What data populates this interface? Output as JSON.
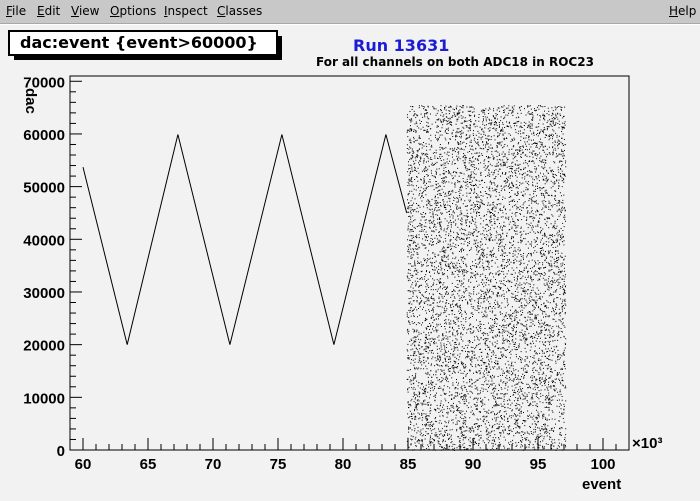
{
  "menubar": {
    "items": [
      {
        "label": "File",
        "u": "F",
        "rest": "ile"
      },
      {
        "label": "Edit",
        "u": "E",
        "rest": "dit"
      },
      {
        "label": "View",
        "u": "V",
        "rest": "iew"
      },
      {
        "label": "Options",
        "u": "O",
        "rest": "ptions"
      },
      {
        "label": "Inspect",
        "u": "I",
        "rest": "nspect"
      },
      {
        "label": "Classes",
        "u": "C",
        "rest": "lasses"
      }
    ],
    "help": {
      "label": "Help",
      "u": "H",
      "rest": "elp"
    }
  },
  "plot": {
    "title_box": "dac:event {event>60000}",
    "run_label": "Run 13631",
    "subtitle": "For all channels on both ADC18 in ROC23"
  },
  "chart_data": {
    "type": "scatter",
    "title": "dac:event {event>60000}",
    "xlabel": "event",
    "ylabel": "dac",
    "x_multiplier_label": "×10³",
    "xlim": [
      59,
      102
    ],
    "ylim": [
      0,
      71000
    ],
    "x_ticks": [
      "60",
      "65",
      "70",
      "75",
      "80",
      "85",
      "90",
      "95",
      "100"
    ],
    "y_ticks": [
      "0",
      "10000",
      "20000",
      "30000",
      "40000",
      "50000",
      "60000",
      "70000"
    ],
    "series": [
      {
        "style": "triangle-wave line",
        "x": [
          60.0,
          63.4,
          67.3,
          71.3,
          75.3,
          79.3,
          83.3,
          84.9
        ],
        "y": [
          53700,
          20000,
          59900,
          20000,
          59900,
          20000,
          59900,
          45000
        ]
      },
      {
        "style": "dense random scatter",
        "x_range": [
          84.9,
          97.1
        ],
        "y_range": [
          0,
          65500
        ]
      }
    ],
    "grid": false,
    "legend": "none"
  }
}
